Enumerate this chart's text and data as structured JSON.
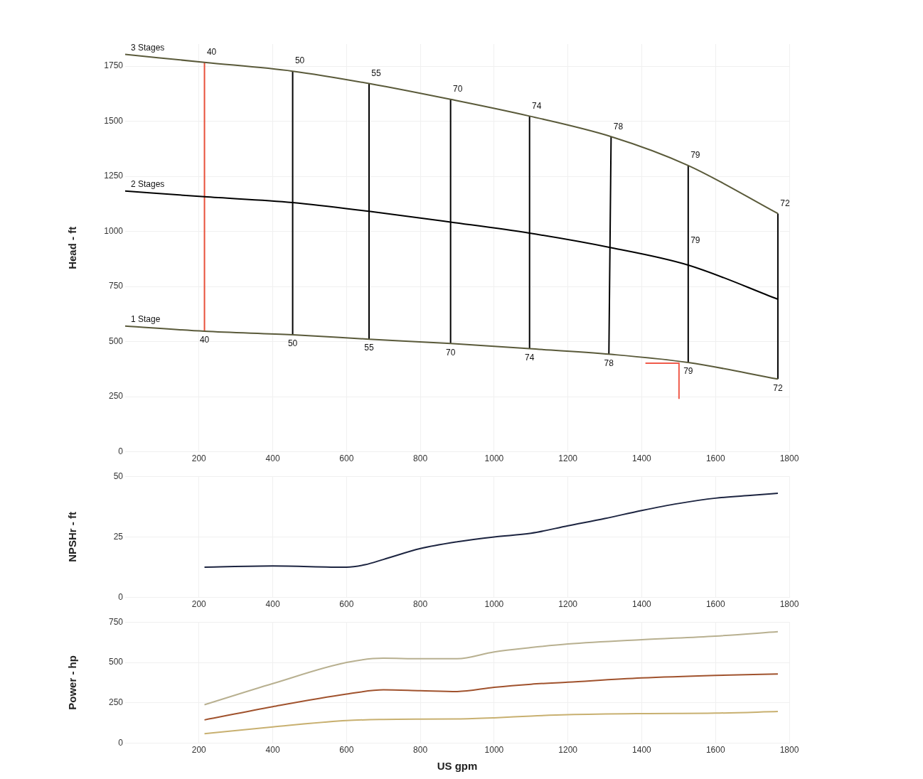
{
  "chart_data": [
    {
      "type": "line",
      "ylabel": "Head - ft",
      "xlim": [
        0,
        1800
      ],
      "xticks": [
        200,
        400,
        600,
        800,
        1000,
        1200,
        1400,
        1600,
        1800
      ],
      "ylim": [
        0,
        1850
      ],
      "yticks": [
        0,
        250,
        500,
        750,
        1000,
        1250,
        1500,
        1750
      ],
      "grid": true,
      "legend": false,
      "marker": "none",
      "x": [
        0,
        215,
        454,
        661,
        882,
        1096,
        1317,
        1526,
        1769
      ],
      "series": [
        {
          "name": "3 Stages",
          "color": "#5a5a3a",
          "values": [
            1803,
            1767,
            1727,
            1671,
            1599,
            1523,
            1430,
            1299,
            1081
          ]
        },
        {
          "name": "2 Stages",
          "color": "#000000",
          "values": [
            1183,
            1157,
            1131,
            1091,
            1042,
            992,
            926,
            847,
            692
          ]
        },
        {
          "name": "1 Stage",
          "color": "#5a5a3a",
          "values": [
            570,
            547,
            531,
            511,
            491,
            468,
            442,
            405,
            330
          ]
        },
        {
          "color": "#e8503a",
          "x": [
            215,
            215
          ],
          "values": [
            547,
            1767
          ]
        },
        {
          "color": "#000000",
          "x": [
            454,
            454
          ],
          "values": [
            531,
            1727
          ]
        },
        {
          "color": "#000000",
          "x": [
            661,
            661
          ],
          "values": [
            511,
            1671
          ]
        },
        {
          "color": "#000000",
          "x": [
            882,
            882
          ],
          "values": [
            491,
            1599
          ]
        },
        {
          "color": "#000000",
          "x": [
            1096,
            1096
          ],
          "values": [
            468,
            1523
          ]
        },
        {
          "color": "#000000",
          "x": [
            1311,
            1317
          ],
          "values": [
            442,
            1430
          ]
        },
        {
          "color": "#000000",
          "x": [
            1526,
            1526
          ],
          "values": [
            405,
            1299
          ]
        },
        {
          "color": "#000000",
          "x": [
            1769,
            1769
          ],
          "values": [
            330,
            1081
          ]
        },
        {
          "color": "#f05a4a",
          "x": [
            1410,
            1501,
            1501
          ],
          "values": [
            402,
            402,
            240
          ]
        }
      ],
      "annotations": [
        {
          "text": "40",
          "x": 215,
          "y": 1767
        },
        {
          "text": "50",
          "x": 454,
          "y": 1727
        },
        {
          "text": "55",
          "x": 661,
          "y": 1671
        },
        {
          "text": "70",
          "x": 882,
          "y": 1599
        },
        {
          "text": "74",
          "x": 1096,
          "y": 1523
        },
        {
          "text": "78",
          "x": 1317,
          "y": 1430
        },
        {
          "text": "79",
          "x": 1526,
          "y": 1299
        },
        {
          "text": "72",
          "x": 1769,
          "y": 1081
        },
        {
          "text": "79",
          "x": 1526,
          "y": 847
        },
        {
          "text": "40",
          "x": 215,
          "y": 547
        },
        {
          "text": "50",
          "x": 454,
          "y": 531
        },
        {
          "text": "55",
          "x": 661,
          "y": 511
        },
        {
          "text": "70",
          "x": 882,
          "y": 491
        },
        {
          "text": "74",
          "x": 1096,
          "y": 468
        },
        {
          "text": "78",
          "x": 1311,
          "y": 442
        },
        {
          "text": "79",
          "x": 1526,
          "y": 405
        },
        {
          "text": "72",
          "x": 1769,
          "y": 330
        }
      ]
    },
    {
      "type": "line",
      "ylabel": "NPSHr - ft",
      "xlim": [
        0,
        1800
      ],
      "xticks": [
        200,
        400,
        600,
        800,
        1000,
        1200,
        1400,
        1600,
        1800
      ],
      "ylim": [
        0,
        50
      ],
      "yticks": [
        0,
        25,
        50
      ],
      "grid": true,
      "legend": false,
      "marker": "none",
      "x": [
        215,
        400,
        600,
        650,
        700,
        800,
        900,
        1000,
        1100,
        1200,
        1300,
        1400,
        1500,
        1600,
        1700,
        1769
      ],
      "series": [
        {
          "color": "#1c2440",
          "values": [
            12.5,
            13,
            12.5,
            13.5,
            15.7,
            20.2,
            23,
            25,
            26.5,
            29.6,
            32.6,
            35.9,
            38.8,
            41,
            42.2,
            43
          ]
        }
      ]
    },
    {
      "type": "line",
      "ylabel": "Power - hp",
      "xlabel": "US gpm",
      "xlim": [
        0,
        1800
      ],
      "xticks": [
        200,
        400,
        600,
        800,
        1000,
        1200,
        1400,
        1600,
        1800
      ],
      "ylim": [
        0,
        750
      ],
      "yticks": [
        0,
        250,
        500,
        750
      ],
      "grid": true,
      "legend": false,
      "marker": "none",
      "x": [
        215,
        400,
        600,
        700,
        800,
        900,
        1000,
        1100,
        1200,
        1400,
        1600,
        1769
      ],
      "series": [
        {
          "color": "#b8b090",
          "values": [
            238,
            369,
            500,
            526,
            523,
            523,
            565,
            592,
            614,
            641,
            663,
            690
          ]
        },
        {
          "color": "#a0522d",
          "values": [
            144,
            226,
            304,
            330,
            325,
            320,
            346,
            365,
            378,
            404,
            420,
            429
          ]
        },
        {
          "color": "#c8b070",
          "values": [
            59,
            101,
            140,
            147,
            149,
            150,
            157,
            168,
            176,
            183,
            186,
            196
          ]
        }
      ]
    }
  ]
}
